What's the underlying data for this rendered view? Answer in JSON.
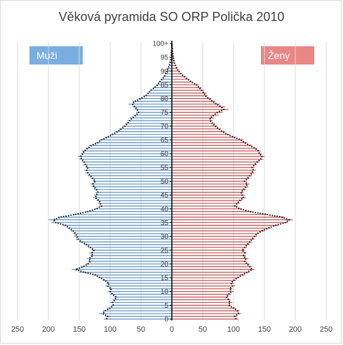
{
  "chart_data": {
    "type": "bar",
    "title": "Věková pyramida SO ORP Polička 2010",
    "legend": {
      "men_label": "Muži",
      "women_label": "Ženy",
      "men_placement": "top-left",
      "women_placement": "top-right"
    },
    "colors": {
      "men": "#5b8fc4",
      "women": "#c0504d",
      "dotted": "#000000",
      "legend_men": "#7aaee0",
      "legend_women": "#e98686",
      "grid": "#d9d9d9"
    },
    "x_ticks": [
      "250",
      "200",
      "150",
      "100",
      "50",
      "0",
      "50",
      "100",
      "150",
      "200",
      "250"
    ],
    "xlim": [
      -250,
      250
    ],
    "age_labels": [
      "0",
      "5",
      "10",
      "15",
      "20",
      "25",
      "30",
      "35",
      "40",
      "45",
      "50",
      "55",
      "60",
      "65",
      "70",
      "75",
      "80",
      "85",
      "90",
      "95",
      "100+"
    ],
    "ages": [
      "0",
      "1",
      "2",
      "3",
      "4",
      "5",
      "6",
      "7",
      "8",
      "9",
      "10",
      "11",
      "12",
      "13",
      "14",
      "15",
      "16",
      "17",
      "18",
      "19",
      "20",
      "21",
      "22",
      "23",
      "24",
      "25",
      "26",
      "27",
      "28",
      "29",
      "30",
      "31",
      "32",
      "33",
      "34",
      "35",
      "36",
      "37",
      "38",
      "39",
      "40",
      "41",
      "42",
      "43",
      "44",
      "45",
      "46",
      "47",
      "48",
      "49",
      "50",
      "51",
      "52",
      "53",
      "54",
      "55",
      "56",
      "57",
      "58",
      "59",
      "60",
      "61",
      "62",
      "63",
      "64",
      "65",
      "66",
      "67",
      "68",
      "69",
      "70",
      "71",
      "72",
      "73",
      "74",
      "75",
      "76",
      "77",
      "78",
      "79",
      "80",
      "81",
      "82",
      "83",
      "84",
      "85",
      "86",
      "87",
      "88",
      "89",
      "90",
      "91",
      "92",
      "93",
      "94",
      "95",
      "96",
      "97",
      "98",
      "99",
      "100+"
    ],
    "men": [
      110,
      108,
      118,
      112,
      105,
      98,
      100,
      96,
      94,
      100,
      104,
      102,
      108,
      106,
      112,
      120,
      128,
      150,
      162,
      148,
      140,
      136,
      138,
      132,
      134,
      130,
      136,
      142,
      150,
      156,
      158,
      160,
      164,
      170,
      176,
      195,
      200,
      185,
      160,
      140,
      125,
      118,
      120,
      122,
      128,
      126,
      124,
      126,
      130,
      132,
      128,
      132,
      136,
      140,
      142,
      140,
      144,
      146,
      150,
      152,
      148,
      146,
      140,
      134,
      124,
      118,
      108,
      100,
      92,
      86,
      80,
      76,
      72,
      68,
      62,
      58,
      60,
      64,
      70,
      64,
      54,
      46,
      40,
      36,
      30,
      25,
      22,
      18,
      14,
      11,
      9,
      7,
      5,
      4,
      3,
      2,
      1,
      1,
      0,
      0,
      0
    ],
    "women": [
      108,
      106,
      112,
      110,
      104,
      96,
      98,
      95,
      92,
      96,
      100,
      98,
      102,
      100,
      104,
      110,
      118,
      126,
      134,
      130,
      126,
      122,
      124,
      120,
      122,
      118,
      122,
      126,
      130,
      134,
      138,
      142,
      150,
      160,
      172,
      188,
      196,
      182,
      156,
      130,
      114,
      106,
      110,
      114,
      120,
      118,
      116,
      120,
      124,
      126,
      122,
      126,
      130,
      134,
      136,
      134,
      138,
      142,
      148,
      150,
      146,
      144,
      138,
      130,
      122,
      116,
      104,
      94,
      86,
      80,
      74,
      70,
      66,
      68,
      76,
      82,
      92,
      86,
      78,
      70,
      64,
      58,
      56,
      52,
      48,
      44,
      34,
      28,
      22,
      16,
      12,
      9,
      7,
      5,
      4,
      3,
      2,
      1,
      1,
      0,
      0
    ],
    "dotted_men": [
      106,
      104,
      112,
      108,
      100,
      95,
      96,
      92,
      90,
      96,
      100,
      98,
      104,
      102,
      108,
      116,
      124,
      142,
      156,
      144,
      136,
      132,
      134,
      128,
      130,
      126,
      132,
      138,
      146,
      152,
      154,
      156,
      160,
      166,
      172,
      188,
      192,
      180,
      156,
      136,
      122,
      114,
      116,
      118,
      124,
      122,
      120,
      122,
      126,
      128,
      124,
      128,
      132,
      136,
      138,
      136,
      140,
      142,
      146,
      148,
      144,
      142,
      136,
      130,
      120,
      114,
      104,
      96,
      88,
      82,
      76,
      72,
      68,
      64,
      58,
      54,
      56,
      60,
      64,
      60,
      50,
      42,
      38,
      34,
      28,
      23,
      20,
      16,
      12,
      10,
      8,
      6,
      4,
      3,
      2,
      2,
      1,
      1,
      0,
      0,
      0
    ],
    "dotted_women": [
      104,
      102,
      108,
      106,
      100,
      92,
      94,
      92,
      88,
      92,
      96,
      94,
      98,
      96,
      100,
      106,
      114,
      122,
      130,
      126,
      122,
      118,
      120,
      116,
      118,
      114,
      118,
      122,
      126,
      130,
      134,
      138,
      146,
      156,
      168,
      184,
      190,
      178,
      152,
      126,
      110,
      102,
      106,
      110,
      116,
      114,
      112,
      116,
      120,
      122,
      118,
      122,
      126,
      130,
      132,
      130,
      134,
      138,
      144,
      146,
      142,
      140,
      134,
      126,
      118,
      112,
      100,
      90,
      82,
      76,
      70,
      66,
      62,
      62,
      68,
      74,
      84,
      80,
      72,
      66,
      60,
      54,
      52,
      48,
      44,
      40,
      32,
      26,
      20,
      15,
      11,
      8,
      6,
      4,
      3,
      2,
      2,
      1,
      1,
      0,
      0
    ]
  }
}
